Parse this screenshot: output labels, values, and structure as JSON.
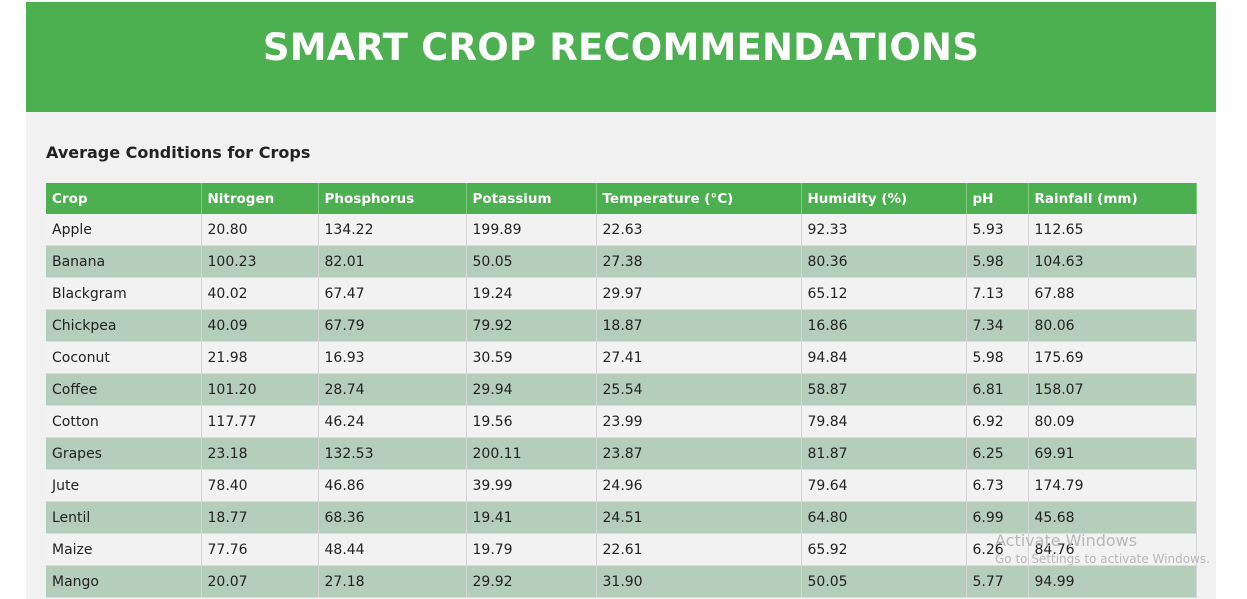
{
  "header": {
    "title": "SMART CROP RECOMMENDATIONS"
  },
  "section": {
    "title": "Average Conditions for Crops"
  },
  "table": {
    "columns": [
      "Crop",
      "Nitrogen",
      "Phosphorus",
      "Potassium",
      "Temperature (°C)",
      "Humidity (%)",
      "pH",
      "Rainfall (mm)"
    ],
    "rows": [
      [
        "Apple",
        "20.80",
        "134.22",
        "199.89",
        "22.63",
        "92.33",
        "5.93",
        "112.65"
      ],
      [
        "Banana",
        "100.23",
        "82.01",
        "50.05",
        "27.38",
        "80.36",
        "5.98",
        "104.63"
      ],
      [
        "Blackgram",
        "40.02",
        "67.47",
        "19.24",
        "29.97",
        "65.12",
        "7.13",
        "67.88"
      ],
      [
        "Chickpea",
        "40.09",
        "67.79",
        "79.92",
        "18.87",
        "16.86",
        "7.34",
        "80.06"
      ],
      [
        "Coconut",
        "21.98",
        "16.93",
        "30.59",
        "27.41",
        "94.84",
        "5.98",
        "175.69"
      ],
      [
        "Coffee",
        "101.20",
        "28.74",
        "29.94",
        "25.54",
        "58.87",
        "6.81",
        "158.07"
      ],
      [
        "Cotton",
        "117.77",
        "46.24",
        "19.56",
        "23.99",
        "79.84",
        "6.92",
        "80.09"
      ],
      [
        "Grapes",
        "23.18",
        "132.53",
        "200.11",
        "23.87",
        "81.87",
        "6.25",
        "69.91"
      ],
      [
        "Jute",
        "78.40",
        "46.86",
        "39.99",
        "24.96",
        "79.64",
        "6.73",
        "174.79"
      ],
      [
        "Lentil",
        "18.77",
        "68.36",
        "19.41",
        "24.51",
        "64.80",
        "6.99",
        "45.68"
      ],
      [
        "Maize",
        "77.76",
        "48.44",
        "19.79",
        "22.61",
        "65.92",
        "6.26",
        "84.76"
      ],
      [
        "Mango",
        "20.07",
        "27.18",
        "29.92",
        "31.90",
        "50.05",
        "5.77",
        "94.99"
      ]
    ]
  },
  "watermark": {
    "title": "Activate Windows",
    "subtitle": "Go to Settings to activate Windows."
  },
  "colors": {
    "header_green": "#4caf50",
    "row_alt": "#b5cdbb",
    "row_light": "#f2f2f2"
  }
}
